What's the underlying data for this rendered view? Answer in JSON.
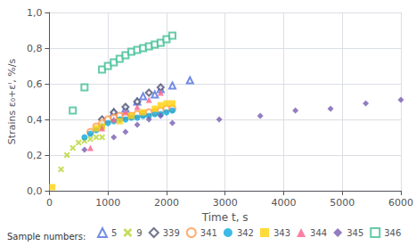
{
  "chart_data": {
    "type": "scatter",
    "xlabel": "Time t, s",
    "ylabel": "Strains ε₀+εᴵ, %/s",
    "xlim": [
      0,
      6000
    ],
    "ylim": [
      0.0,
      1.0
    ],
    "xticks": [
      0,
      1000,
      2000,
      3000,
      4000,
      5000,
      6000
    ],
    "yticks": [
      {
        "value": 0.0,
        "label": "0,0"
      },
      {
        "value": 0.2,
        "label": "0,2"
      },
      {
        "value": 0.4,
        "label": "0,4"
      },
      {
        "value": 0.6,
        "label": "0,6"
      },
      {
        "value": 0.8,
        "label": "0,8"
      },
      {
        "value": 1.0,
        "label": "1,0"
      }
    ],
    "grid": true,
    "legend": "bottom",
    "legend_title": "Sample numbers:",
    "series": [
      {
        "name": "5",
        "marker": "triangle-open",
        "x": [
          1100,
          1300,
          1500,
          1600,
          1800,
          1900,
          2100,
          2400
        ],
        "values": [
          0.44,
          0.46,
          0.5,
          0.53,
          0.54,
          0.57,
          0.59,
          0.62
        ]
      },
      {
        "name": "9",
        "marker": "x",
        "x": [
          200,
          300,
          400,
          500,
          600,
          700,
          800,
          900
        ],
        "values": [
          0.12,
          0.2,
          0.24,
          0.27,
          0.28,
          0.29,
          0.3,
          0.3
        ]
      },
      {
        "name": "339",
        "marker": "diamond-open",
        "x": [
          900,
          1100,
          1300,
          1500,
          1700,
          1900
        ],
        "values": [
          0.4,
          0.44,
          0.47,
          0.5,
          0.55,
          0.58
        ]
      },
      {
        "name": "341",
        "marker": "circle-open",
        "x": [
          700,
          800,
          900,
          1000,
          1100,
          1200,
          1300,
          1400,
          1500,
          1600,
          1700,
          1800,
          1900,
          2000,
          2100
        ],
        "values": [
          0.33,
          0.36,
          0.38,
          0.4,
          0.41,
          0.42,
          0.42,
          0.42,
          0.43,
          0.43,
          0.44,
          0.44,
          0.45,
          0.46,
          0.46
        ]
      },
      {
        "name": "342",
        "marker": "circle",
        "x": [
          600,
          700,
          800,
          900,
          1000,
          1100,
          1200,
          1300,
          1400,
          1500,
          1600,
          1700,
          1800,
          1900,
          2000,
          2100
        ],
        "values": [
          0.3,
          0.32,
          0.34,
          0.36,
          0.38,
          0.39,
          0.4,
          0.4,
          0.41,
          0.41,
          0.42,
          0.42,
          0.43,
          0.43,
          0.44,
          0.45
        ]
      },
      {
        "name": "343",
        "marker": "square",
        "x": [
          50,
          800,
          900,
          1200,
          1400,
          1600,
          1800,
          1900,
          2000,
          2100
        ],
        "values": [
          0.02,
          0.35,
          0.36,
          0.39,
          0.42,
          0.44,
          0.46,
          0.48,
          0.49,
          0.49
        ]
      },
      {
        "name": "344",
        "marker": "triangle",
        "x": [
          700,
          900,
          1100,
          1300,
          1500,
          1700,
          1900
        ],
        "values": [
          0.24,
          0.35,
          0.4,
          0.44,
          0.47,
          0.51,
          0.55
        ]
      },
      {
        "name": "345",
        "marker": "diamond",
        "x": [
          600,
          1100,
          1300,
          1500,
          1700,
          1900,
          2100,
          2900,
          3600,
          4200,
          4800,
          5400,
          6000
        ],
        "values": [
          0.23,
          0.3,
          0.33,
          0.37,
          0.4,
          0.42,
          0.38,
          0.4,
          0.42,
          0.45,
          0.46,
          0.49,
          0.51
        ]
      },
      {
        "name": "346",
        "marker": "square-open",
        "x": [
          400,
          600,
          900,
          1000,
          1100,
          1200,
          1300,
          1400,
          1500,
          1600,
          1700,
          1800,
          1900,
          2000,
          2100
        ],
        "values": [
          0.45,
          0.58,
          0.68,
          0.7,
          0.72,
          0.74,
          0.76,
          0.78,
          0.79,
          0.8,
          0.81,
          0.82,
          0.83,
          0.85,
          0.87
        ]
      }
    ]
  }
}
